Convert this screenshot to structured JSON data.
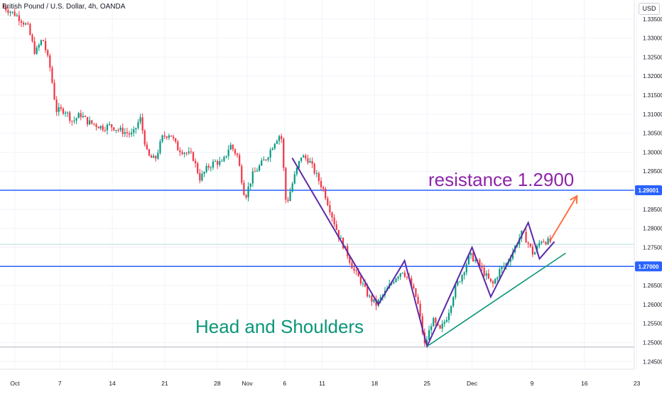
{
  "header": {
    "title": "British Pound / U.S. Dollar, 4h, OANDA",
    "currency": "USD"
  },
  "annotations": {
    "resistance": "resistance 1.2900",
    "pattern": "Head and Shoulders"
  },
  "colors": {
    "up": "#089981",
    "down": "#f23645",
    "level_line": "#2962ff",
    "pattern_line": "#5b2aa7",
    "trend_line": "#0b9678",
    "arrow": "#ff7043",
    "resistance_text": "#8e24aa",
    "hs_text": "#0b9678"
  },
  "chart_data": {
    "type": "candlestick",
    "title": "British Pound / U.S. Dollar, 4h, OANDA",
    "ylabel": "USD",
    "ylim": [
      1.243,
      1.34
    ],
    "y_ticks": [
      "1.33500",
      "1.33000",
      "1.32500",
      "1.32000",
      "1.31500",
      "1.31000",
      "1.30500",
      "1.30000",
      "1.29500",
      "1.28500",
      "1.28000",
      "1.27500",
      "1.26500",
      "1.26000",
      "1.25500",
      "1.25000",
      "1.24500"
    ],
    "x_ticks": [
      {
        "label": "Oct",
        "day": 0
      },
      {
        "label": "7",
        "day": 6
      },
      {
        "label": "14",
        "day": 13
      },
      {
        "label": "21",
        "day": 20
      },
      {
        "label": "28",
        "day": 27
      },
      {
        "label": "Nov",
        "day": 31
      },
      {
        "label": "6",
        "day": 36
      },
      {
        "label": "11",
        "day": 41
      },
      {
        "label": "18",
        "day": 48
      },
      {
        "label": "25",
        "day": 55
      },
      {
        "label": "Dec",
        "day": 61
      },
      {
        "label": "9",
        "day": 69
      },
      {
        "label": "16",
        "day": 76
      },
      {
        "label": "23",
        "day": 83
      }
    ],
    "x_range_days": [
      -2,
      86
    ],
    "price_labels": [
      {
        "value": 1.29001,
        "text": "1.29001"
      },
      {
        "value": 1.27,
        "text": "1.27000"
      }
    ],
    "horizontal_levels": [
      1.29001,
      1.27,
      1.2758,
      1.2488
    ],
    "price_anchors": [
      [
        -1.5,
        1.3385
      ],
      [
        0.5,
        1.336
      ],
      [
        2,
        1.333
      ],
      [
        3,
        1.326
      ],
      [
        4,
        1.33
      ],
      [
        5,
        1.322
      ],
      [
        5.8,
        1.311
      ],
      [
        7,
        1.311
      ],
      [
        8,
        1.308
      ],
      [
        9,
        1.31
      ],
      [
        10,
        1.308
      ],
      [
        12,
        1.3065
      ],
      [
        13,
        1.307
      ],
      [
        14,
        1.306
      ],
      [
        16,
        1.3045
      ],
      [
        17,
        1.309
      ],
      [
        18,
        1.299
      ],
      [
        19,
        1.298
      ],
      [
        20,
        1.304
      ],
      [
        21,
        1.305
      ],
      [
        22,
        1.301
      ],
      [
        24,
        1.299
      ],
      [
        25,
        1.293
      ],
      [
        26,
        1.296
      ],
      [
        27,
        1.2975
      ],
      [
        28,
        1.297
      ],
      [
        29,
        1.302
      ],
      [
        30,
        1.299
      ],
      [
        31,
        1.288
      ],
      [
        32,
        1.294
      ],
      [
        33,
        1.2965
      ],
      [
        34,
        1.299
      ],
      [
        35,
        1.303
      ],
      [
        35.8,
        1.305
      ],
      [
        36.5,
        1.286
      ],
      [
        37.5,
        1.293
      ],
      [
        38.5,
        1.299
      ],
      [
        39.5,
        1.298
      ],
      [
        40.5,
        1.294
      ],
      [
        41.5,
        1.29
      ],
      [
        42.5,
        1.284
      ],
      [
        43.5,
        1.278
      ],
      [
        44.5,
        1.274
      ],
      [
        45.5,
        1.269
      ],
      [
        46.5,
        1.266
      ],
      [
        47.5,
        1.262
      ],
      [
        48.5,
        1.26
      ],
      [
        50,
        1.264
      ],
      [
        51,
        1.267
      ],
      [
        52,
        1.269
      ],
      [
        53,
        1.266
      ],
      [
        54,
        1.261
      ],
      [
        55,
        1.249
      ],
      [
        56,
        1.256
      ],
      [
        57,
        1.253
      ],
      [
        58,
        1.257
      ],
      [
        59,
        1.264
      ],
      [
        60,
        1.268
      ],
      [
        61,
        1.273
      ],
      [
        62,
        1.271
      ],
      [
        63,
        1.268
      ],
      [
        64,
        1.265
      ],
      [
        65,
        1.269
      ],
      [
        66,
        1.271
      ],
      [
        67,
        1.275
      ],
      [
        68,
        1.279
      ],
      [
        68.8,
        1.276
      ],
      [
        69.5,
        1.273
      ],
      [
        70.5,
        1.277
      ],
      [
        71.5,
        1.2765
      ]
    ],
    "drawings": {
      "pattern_path": [
        [
          37,
          1.2985
        ],
        [
          48.5,
          1.26
        ],
        [
          52,
          1.2715
        ],
        [
          55,
          1.249
        ],
        [
          61,
          1.275
        ],
        [
          63.5,
          1.262
        ],
        [
          68.5,
          1.2815
        ],
        [
          70,
          1.272
        ],
        [
          72,
          1.2765
        ]
      ],
      "trend_line": [
        [
          55,
          1.249
        ],
        [
          73.5,
          1.2735
        ]
      ],
      "arrow": [
        [
          71.5,
          1.277
        ],
        [
          75,
          1.2885
        ]
      ]
    }
  }
}
